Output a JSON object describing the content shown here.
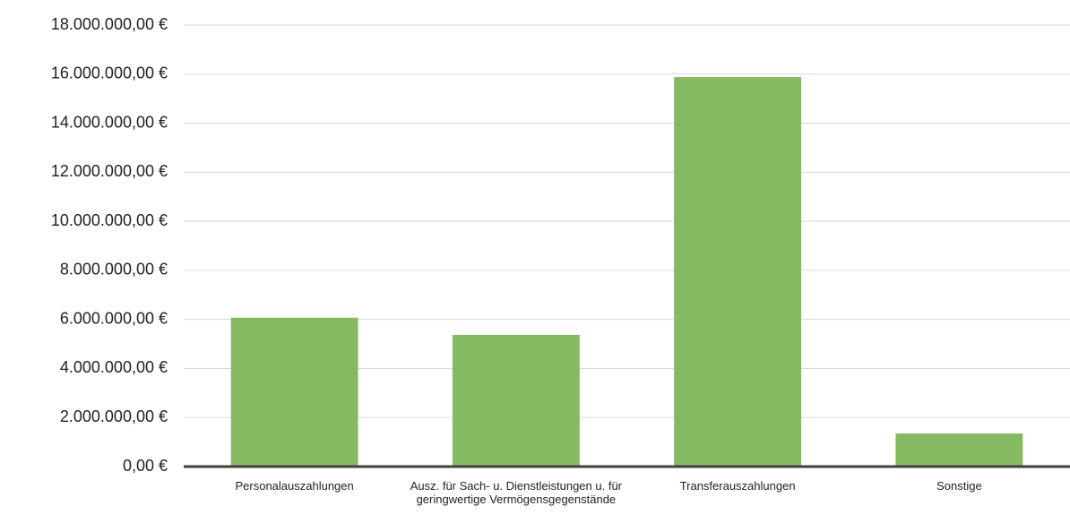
{
  "chart_data": {
    "type": "bar",
    "categories": [
      "Personalauszahlungen",
      "Ausz. für Sach- u. Dienstleistungen u. für geringwertige Vermögensgegenstände",
      "Transferauszahlungen",
      "Sonstige"
    ],
    "values": [
      6070000,
      5370000,
      15880000,
      1350000
    ],
    "color": "#86ba62",
    "ylim": [
      0,
      18000000
    ],
    "yticks": [
      {
        "value": 0,
        "label": "0,00 €"
      },
      {
        "value": 2000000,
        "label": "2.000.000,00 €"
      },
      {
        "value": 4000000,
        "label": "4.000.000,00 €"
      },
      {
        "value": 6000000,
        "label": "6.000.000,00 €"
      },
      {
        "value": 8000000,
        "label": "8.000.000,00 €"
      },
      {
        "value": 10000000,
        "label": "10.000.000,00 €"
      },
      {
        "value": 12000000,
        "label": "12.000.000,00 €"
      },
      {
        "value": 14000000,
        "label": "14.000.000,00 €"
      },
      {
        "value": 16000000,
        "label": "16.000.000,00 €"
      },
      {
        "value": 18000000,
        "label": "18.000.000,00 €"
      }
    ],
    "grid": true
  }
}
